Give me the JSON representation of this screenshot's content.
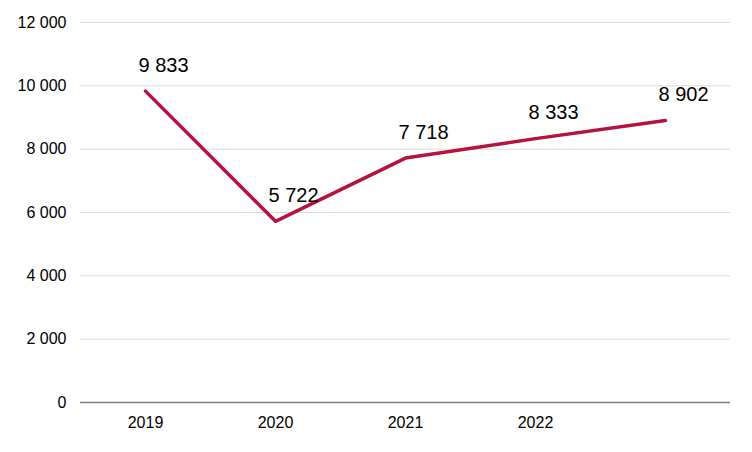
{
  "chart_data": {
    "type": "line",
    "categories": [
      "2019",
      "2020",
      "2021",
      "2022",
      null
    ],
    "values": [
      9833,
      5722,
      7718,
      8333,
      8902
    ],
    "value_labels": [
      "9 833",
      "5 722",
      "7 718",
      "8 333",
      "8 902"
    ],
    "color": "#b5123f",
    "ylim": [
      0,
      12000
    ],
    "yticks": [
      0,
      {
        "value": 2000,
        "label": "2 000"
      },
      {
        "value": 4000,
        "label": "4 000"
      },
      {
        "value": 6000,
        "label": "6 000"
      },
      {
        "value": 8000,
        "label": "8 000"
      },
      {
        "value": 10000,
        "label": "10 000"
      },
      {
        "value": 12000,
        "label": "12 000"
      }
    ],
    "grid": true,
    "data_labels": true
  }
}
